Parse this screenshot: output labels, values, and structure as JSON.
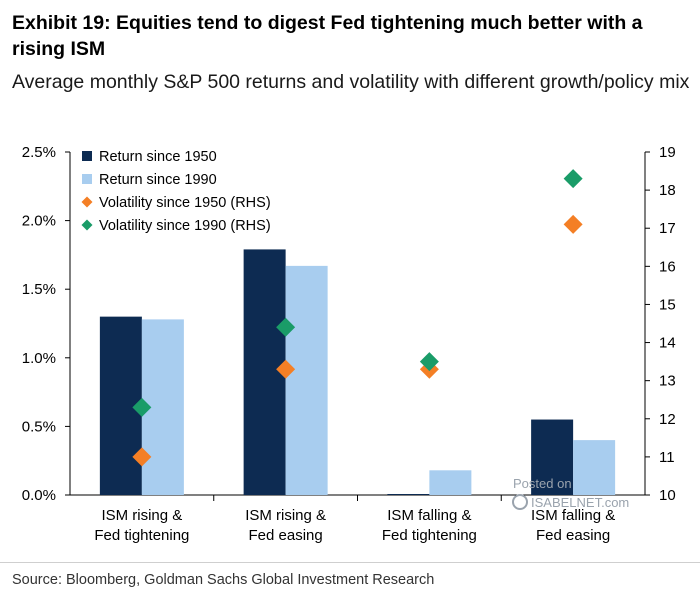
{
  "header": {
    "title": "Exhibit 19: Equities tend to digest Fed tightening much better with a rising ISM",
    "subtitle": "Average monthly S&P 500 returns and volatility with different growth/policy mix"
  },
  "footer": {
    "source": "Source: Bloomberg, Goldman Sachs Global Investment Research"
  },
  "watermark": {
    "line1": "Posted on",
    "line2": "ISABELNET.com"
  },
  "colors": {
    "return_1950": "#0d2b52",
    "return_1990": "#a8cdef",
    "vol_1950": "#f47f25",
    "vol_1990": "#1a9c68"
  },
  "chart_data": {
    "type": "bar",
    "title": "Exhibit 19: Equities tend to digest Fed tightening much better with a rising ISM",
    "categories": [
      [
        "ISM rising &",
        "Fed tightening"
      ],
      [
        "ISM rising &",
        "Fed easing"
      ],
      [
        "ISM falling &",
        "Fed tightening"
      ],
      [
        "ISM falling &",
        "Fed easing"
      ]
    ],
    "left_axis": {
      "ylim": [
        0,
        2.5
      ],
      "ticks": [
        "0.0%",
        "0.5%",
        "1.0%",
        "1.5%",
        "2.0%",
        "2.5%"
      ],
      "tick_values": [
        0,
        0.5,
        1.0,
        1.5,
        2.0,
        2.5
      ]
    },
    "right_axis": {
      "ylim": [
        10,
        19
      ],
      "ticks": [
        "10",
        "11",
        "12",
        "13",
        "14",
        "15",
        "16",
        "17",
        "18",
        "19"
      ],
      "tick_values": [
        10,
        11,
        12,
        13,
        14,
        15,
        16,
        17,
        18,
        19
      ]
    },
    "legend": {
      "position": "top-left"
    },
    "series": [
      {
        "name": "Return since 1950",
        "kind": "bar",
        "axis": "left",
        "color": "#0d2b52",
        "values": [
          1.3,
          1.79,
          0.0,
          0.55
        ]
      },
      {
        "name": "Return since 1990",
        "kind": "bar",
        "axis": "left",
        "color": "#a8cdef",
        "values": [
          1.28,
          1.67,
          0.18,
          0.4
        ]
      },
      {
        "name": "Volatility since 1950 (RHS)",
        "kind": "marker",
        "axis": "right",
        "color": "#f47f25",
        "values": [
          11.0,
          13.3,
          13.3,
          17.1
        ]
      },
      {
        "name": "Volatility since 1990 (RHS)",
        "kind": "marker",
        "axis": "right",
        "color": "#1a9c68",
        "values": [
          12.3,
          14.4,
          13.5,
          18.3
        ]
      }
    ]
  }
}
